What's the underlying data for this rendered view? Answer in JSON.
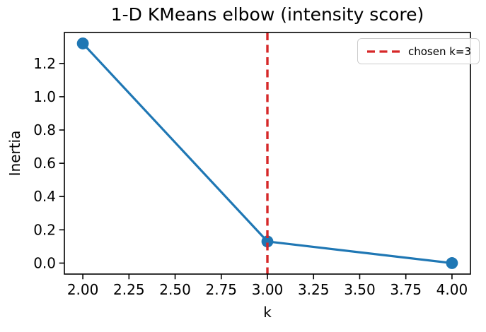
{
  "figure": {
    "background": "#ffffff"
  },
  "chart_data": {
    "type": "line",
    "title": "1-D KMeans elbow (intensity score)",
    "xlabel": "k",
    "ylabel": "Inertia",
    "x": [
      2,
      3,
      4
    ],
    "series": [
      {
        "name": "inertia",
        "values": [
          1.32,
          0.13,
          0.0
        ],
        "color": "#1f77b4",
        "marker": "circle",
        "linewidth": 3.2,
        "markersize": 8.4
      }
    ],
    "xlim": [
      1.9,
      4.1
    ],
    "ylim": [
      -0.066,
      1.386
    ],
    "xticks": [
      2.0,
      2.25,
      2.5,
      2.75,
      3.0,
      3.25,
      3.5,
      3.75,
      4.0
    ],
    "xtick_labels": [
      "2.00",
      "2.25",
      "2.50",
      "2.75",
      "3.00",
      "3.25",
      "3.50",
      "3.75",
      "4.00"
    ],
    "yticks": [
      0.0,
      0.2,
      0.4,
      0.6,
      0.8,
      1.0,
      1.2
    ],
    "ytick_labels": [
      "0.0",
      "0.2",
      "0.4",
      "0.6",
      "0.8",
      "1.0",
      "1.2"
    ],
    "grid": false,
    "vline": {
      "x": 3,
      "color": "#d62728",
      "style": "dashed"
    },
    "legend": {
      "position": "upper right",
      "entries": [
        {
          "label": "chosen k=3",
          "color": "#d62728",
          "style": "dashed"
        }
      ]
    },
    "axis_color": "#000000",
    "spine_width": 1.6
  }
}
